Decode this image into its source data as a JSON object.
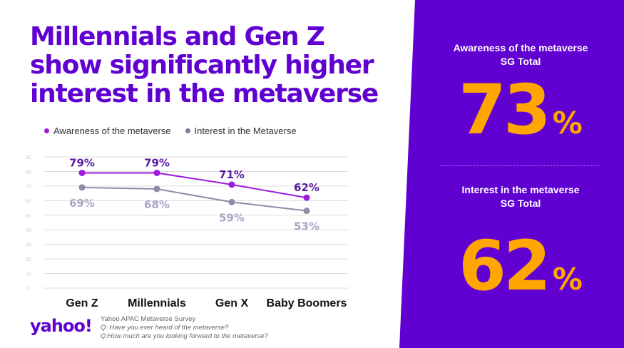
{
  "title_lines": [
    "Millennials and Gen Z",
    "show significantly higher",
    "interest in the metaverse"
  ],
  "colors": {
    "brand": "#6001d2",
    "series_awareness": "#9b1be0",
    "series_interest": "#7d7a9c",
    "accent": "#ffa700",
    "panel": "#6001d2"
  },
  "stats": {
    "awareness": {
      "label_line1": "Awareness of the metaverse",
      "label_line2": "SG Total",
      "value": "73",
      "unit": "%"
    },
    "interest": {
      "label_line1": "Interest in the metaverse",
      "label_line2": "SG  Total",
      "value": "62",
      "unit": "%"
    }
  },
  "footer": {
    "logo": "yahoo!",
    "source": "Yahoo APAC Metaverse Survey",
    "q1": "Q: Have you ever heard of the metaverse?",
    "q2": "Q:How much are you looking forward to the metaverse?"
  },
  "chart_data": {
    "type": "line",
    "categories": [
      "Gen Z",
      "Millennials",
      "Gen X",
      "Baby Boomers"
    ],
    "series": [
      {
        "name": "Awareness of the metaverse",
        "values": [
          79,
          79,
          71,
          62
        ],
        "labels": [
          "79%",
          "79%",
          "71%",
          "62%"
        ],
        "color": "#9b1be0"
      },
      {
        "name": "Interest in the Metaverse",
        "values": [
          69,
          68,
          59,
          53
        ],
        "labels": [
          "69%",
          "68%",
          "59%",
          "53%"
        ],
        "color": "#8e8ba9"
      }
    ],
    "ylim": [
      0,
      90
    ],
    "yticks": [
      "0",
      "10",
      "20",
      "30",
      "40",
      "50",
      "60",
      "70",
      "80",
      "90"
    ],
    "grid": true,
    "legend": "top-left"
  }
}
